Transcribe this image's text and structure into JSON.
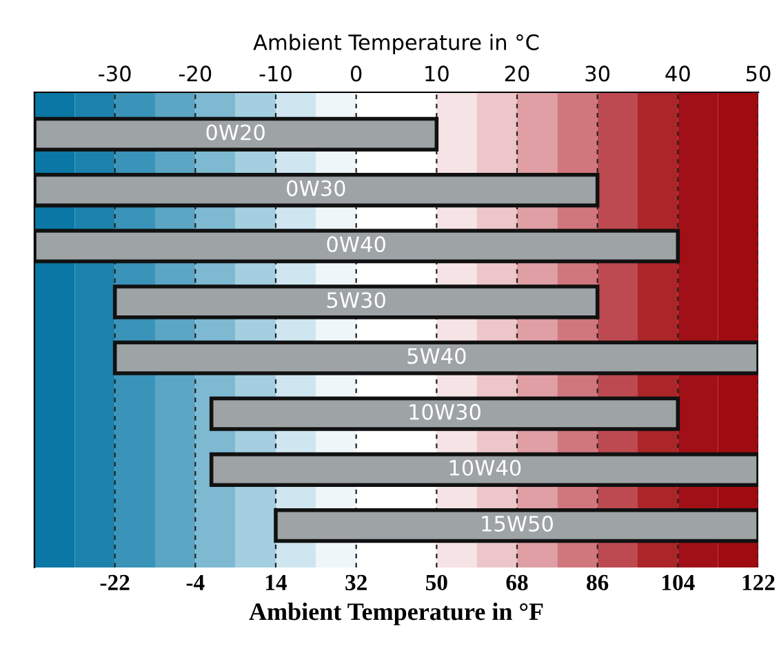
{
  "chart_data": {
    "type": "bar",
    "orientation": "horizontal",
    "xlabel": "Ambient Temperature in °F",
    "x2label": "Ambient Temperature in °C",
    "categories": [
      "0W20",
      "0W30",
      "0W40",
      "5W30",
      "5W40",
      "10W30",
      "10W40",
      "15W50"
    ],
    "series": [
      {
        "axis": "x2",
        "color": "#9ea3a6",
        "base": [
          -40,
          -40,
          -40,
          -30,
          -30,
          -18,
          -18,
          -10
        ],
        "values": [
          50,
          70,
          80,
          60,
          80,
          58,
          68,
          60
        ]
      }
    ],
    "xlim": [
      -40,
      122
    ],
    "xticks": [
      -22,
      -4,
      14,
      32,
      50,
      68,
      86,
      104,
      122
    ],
    "x2lim": [
      -40,
      50
    ],
    "x2ticks": [
      -30,
      -20,
      -10,
      0,
      10,
      20,
      30,
      40,
      50
    ],
    "bands": [
      {
        "axis": "x2",
        "from": -40,
        "to": -35,
        "color": "#0a77a5"
      },
      {
        "axis": "x2",
        "from": -35,
        "to": -30,
        "color": "#1c82ad"
      },
      {
        "axis": "x2",
        "from": -30,
        "to": -25,
        "color": "#3a93b8"
      },
      {
        "axis": "x2",
        "from": -25,
        "to": -20,
        "color": "#5aa6c4"
      },
      {
        "axis": "x2",
        "from": -20,
        "to": -15,
        "color": "#7db9d1"
      },
      {
        "axis": "x2",
        "from": -15,
        "to": -10,
        "color": "#a3cfe0"
      },
      {
        "axis": "x2",
        "from": -10,
        "to": -5,
        "color": "#cfe6f0"
      },
      {
        "axis": "x2",
        "from": -5,
        "to": 0,
        "color": "#eef6f9"
      },
      {
        "axis": "x2",
        "from": 10,
        "to": 15,
        "color": "#f6e3e5"
      },
      {
        "axis": "x2",
        "from": 15,
        "to": 20,
        "color": "#ecc6c9"
      },
      {
        "axis": "x2",
        "from": 20,
        "to": 25,
        "color": "#df9fa4"
      },
      {
        "axis": "x2",
        "from": 25,
        "to": 30,
        "color": "#cf777d"
      },
      {
        "axis": "x2",
        "from": 30,
        "to": 35,
        "color": "#bd4a51"
      },
      {
        "axis": "x2",
        "from": 35,
        "to": 40,
        "color": "#ac2529"
      },
      {
        "axis": "x2",
        "from": 40,
        "to": 45,
        "color": "#a01016"
      },
      {
        "axis": "x2",
        "from": 45,
        "to": 50,
        "color": "#9e0b10"
      }
    ],
    "grid": "x",
    "legend": false
  }
}
